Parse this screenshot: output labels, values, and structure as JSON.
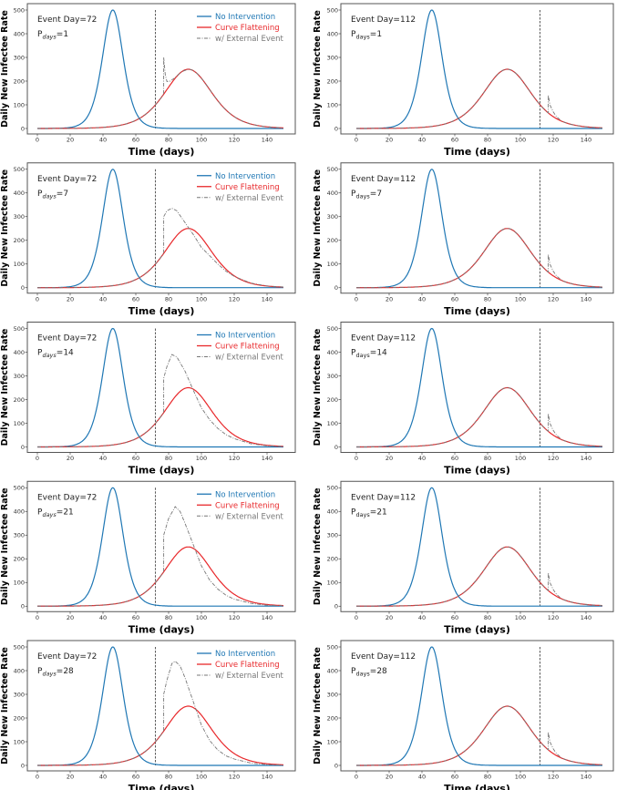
{
  "chart_data": {
    "type": "line",
    "layout": "5 rows x 2 columns",
    "xlabel": "Time (days)",
    "ylabel": "Daily New Infectee Rate",
    "xlim": [
      -5,
      155
    ],
    "ylim": [
      -20,
      520
    ],
    "xticks": [
      0,
      20,
      40,
      60,
      80,
      100,
      120,
      140
    ],
    "yticks": [
      0,
      100,
      200,
      300,
      400,
      500
    ],
    "legend": {
      "placement": "top-right",
      "entries": [
        "No Intervention",
        "Curve Flattening",
        "w/ External Event"
      ]
    },
    "colors": {
      "no_intervention": "#1f77b4",
      "curve_flattening": "#e8282b",
      "external": "#777777",
      "event_line": "#333333"
    },
    "base_curves": {
      "no_intervention": {
        "shape": "sech^2 bump",
        "peak": 500,
        "peak_day": 46,
        "width_days": 8.5
      },
      "curve_flattening": {
        "shape": "sech^2 bump",
        "peak": 250,
        "peak_day": 92,
        "width_days": 19.4
      }
    },
    "panels": [
      {
        "event_label": "Event Day=72",
        "p_label": "P",
        "p_sub": "days",
        "p_value": "=1",
        "event_day": 72,
        "show_legend": true,
        "external_points": [
          [
            77,
            145
          ],
          [
            77,
            300
          ],
          [
            78,
            225
          ],
          [
            79,
            198
          ],
          [
            81,
            200
          ],
          [
            84,
            215
          ],
          [
            88,
            240
          ],
          [
            92,
            250
          ]
        ]
      },
      {
        "event_label": "Event Day=112",
        "p_label": "P",
        "p_sub": "days",
        "p_value": "=1",
        "event_day": 112,
        "show_legend": false,
        "external_points": [
          [
            117,
            66
          ],
          [
            117,
            140
          ],
          [
            118,
            100
          ],
          [
            120,
            70
          ],
          [
            122,
            50
          ],
          [
            125,
            32
          ]
        ]
      },
      {
        "event_label": "Event Day=72",
        "p_label": "P",
        "p_sub": "days",
        "p_value": "=7",
        "event_day": 72,
        "show_legend": true,
        "external_points": [
          [
            77,
            145
          ],
          [
            77,
            300
          ],
          [
            79,
            325
          ],
          [
            82,
            335
          ],
          [
            85,
            325
          ],
          [
            90,
            275
          ],
          [
            95,
            225
          ],
          [
            100,
            170
          ],
          [
            105,
            135
          ],
          [
            110,
            100
          ],
          [
            115,
            70
          ],
          [
            120,
            48
          ],
          [
            130,
            20
          ],
          [
            140,
            7
          ],
          [
            150,
            3
          ]
        ]
      },
      {
        "event_label": "Event Day=112",
        "p_label": "P",
        "p_sub": "days",
        "p_value": "=7",
        "event_day": 112,
        "show_legend": false,
        "external_points": [
          [
            117,
            66
          ],
          [
            117,
            140
          ],
          [
            118,
            100
          ],
          [
            120,
            70
          ],
          [
            122,
            50
          ],
          [
            125,
            32
          ]
        ]
      },
      {
        "event_label": "Event Day=72",
        "p_label": "P",
        "p_sub": "days",
        "p_value": "=14",
        "event_day": 72,
        "show_legend": true,
        "external_points": [
          [
            77,
            145
          ],
          [
            77,
            290
          ],
          [
            79,
            340
          ],
          [
            82,
            390
          ],
          [
            85,
            380
          ],
          [
            90,
            320
          ],
          [
            95,
            240
          ],
          [
            100,
            165
          ],
          [
            105,
            115
          ],
          [
            110,
            78
          ],
          [
            115,
            52
          ],
          [
            120,
            35
          ],
          [
            130,
            14
          ],
          [
            140,
            5
          ],
          [
            150,
            2
          ]
        ]
      },
      {
        "event_label": "Event Day=112",
        "p_label": "P",
        "p_sub": "days",
        "p_value": "=14",
        "event_day": 112,
        "show_legend": false,
        "external_points": [
          [
            117,
            66
          ],
          [
            117,
            140
          ],
          [
            118,
            100
          ],
          [
            120,
            70
          ],
          [
            122,
            50
          ],
          [
            125,
            32
          ]
        ]
      },
      {
        "event_label": "Event Day=72",
        "p_label": "P",
        "p_sub": "days",
        "p_value": "=21",
        "event_day": 72,
        "show_legend": true,
        "external_points": [
          [
            77,
            145
          ],
          [
            77,
            300
          ],
          [
            80,
            370
          ],
          [
            84,
            420
          ],
          [
            87,
            400
          ],
          [
            90,
            350
          ],
          [
            95,
            260
          ],
          [
            100,
            170
          ],
          [
            105,
            110
          ],
          [
            110,
            72
          ],
          [
            115,
            46
          ],
          [
            120,
            30
          ],
          [
            130,
            12
          ],
          [
            140,
            4
          ],
          [
            150,
            2
          ]
        ]
      },
      {
        "event_label": "Event Day=112",
        "p_label": "P",
        "p_sub": "days",
        "p_value": "=21",
        "event_day": 112,
        "show_legend": false,
        "external_points": [
          [
            117,
            66
          ],
          [
            117,
            140
          ],
          [
            118,
            100
          ],
          [
            120,
            70
          ],
          [
            122,
            50
          ],
          [
            125,
            32
          ]
        ]
      },
      {
        "event_label": "Event Day=72",
        "p_label": "P",
        "p_sub": "days",
        "p_value": "=28",
        "event_day": 72,
        "show_legend": true,
        "external_points": [
          [
            77,
            145
          ],
          [
            77,
            300
          ],
          [
            79,
            360
          ],
          [
            82,
            430
          ],
          [
            84,
            440
          ],
          [
            87,
            420
          ],
          [
            90,
            370
          ],
          [
            95,
            270
          ],
          [
            100,
            170
          ],
          [
            105,
            105
          ],
          [
            110,
            65
          ],
          [
            115,
            40
          ],
          [
            120,
            27
          ],
          [
            130,
            10
          ],
          [
            140,
            3
          ],
          [
            150,
            1
          ]
        ]
      },
      {
        "event_label": "Event Day=112",
        "p_label": "P",
        "p_sub": "days",
        "p_value": "=28",
        "event_day": 112,
        "show_legend": false,
        "external_points": [
          [
            117,
            66
          ],
          [
            117,
            140
          ],
          [
            118,
            100
          ],
          [
            120,
            70
          ],
          [
            122,
            50
          ],
          [
            125,
            32
          ]
        ]
      }
    ]
  }
}
